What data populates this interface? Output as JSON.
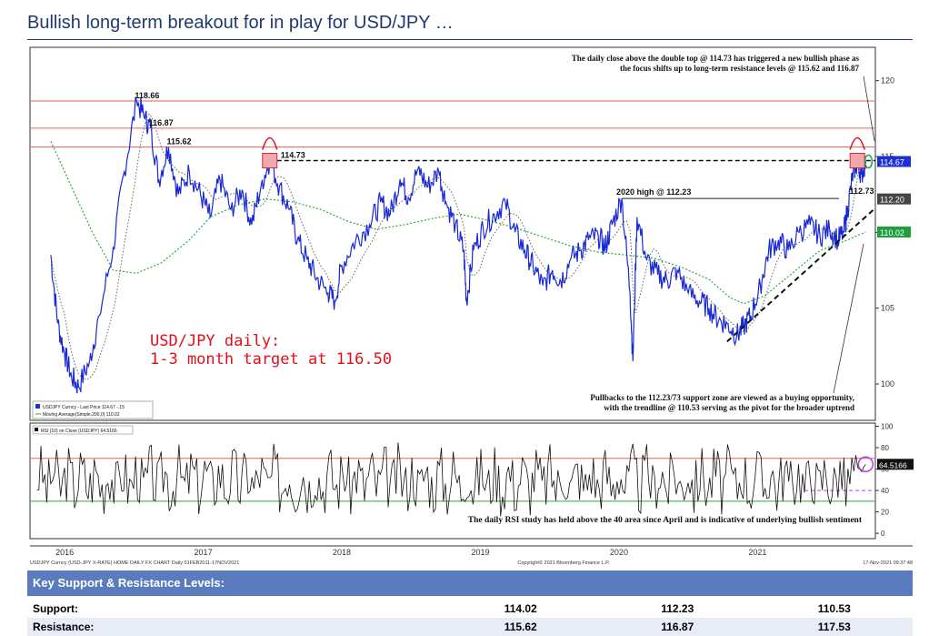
{
  "page_title": "Bullish long-term breakout for in play for USD/JPY …",
  "chart_data": {
    "type": "line",
    "main": {
      "y_ticks": [
        100,
        105,
        110,
        115,
        120
      ],
      "ylim": [
        97.6,
        122.2
      ],
      "x_labels": [
        "2016",
        "2017",
        "2018",
        "2019",
        "2020",
        "2021"
      ],
      "series": [
        {
          "name": "USDJPY Curncy - Last Price",
          "last": "114.67",
          "change": "-.15"
        },
        {
          "name": "Moving Average(Simple,200,0)",
          "last": "110.02"
        }
      ],
      "price_path": [
        [
          2016.0,
          108.5
        ],
        [
          2016.05,
          104.0
        ],
        [
          2016.1,
          102.0
        ],
        [
          2016.15,
          100.5
        ],
        [
          2016.2,
          99.8
        ],
        [
          2016.28,
          101.5
        ],
        [
          2016.35,
          104.5
        ],
        [
          2016.45,
          109.0
        ],
        [
          2016.53,
          114.0
        ],
        [
          2016.62,
          118.66
        ],
        [
          2016.68,
          117.5
        ],
        [
          2016.72,
          116.87
        ],
        [
          2016.78,
          113.5
        ],
        [
          2016.85,
          115.62
        ],
        [
          2016.92,
          112.5
        ],
        [
          2017.0,
          114.0
        ],
        [
          2017.08,
          112.5
        ],
        [
          2017.15,
          111.0
        ],
        [
          2017.22,
          113.5
        ],
        [
          2017.3,
          111.5
        ],
        [
          2017.38,
          112.8
        ],
        [
          2017.45,
          110.5
        ],
        [
          2017.52,
          113.2
        ],
        [
          2017.58,
          114.73
        ],
        [
          2017.65,
          113.0
        ],
        [
          2017.72,
          111.5
        ],
        [
          2017.78,
          109.5
        ],
        [
          2017.85,
          108.2
        ],
        [
          2017.92,
          107.0
        ],
        [
          2018.0,
          106.0
        ],
        [
          2018.05,
          105.5
        ],
        [
          2018.1,
          107.8
        ],
        [
          2018.2,
          109.5
        ],
        [
          2018.3,
          110.5
        ],
        [
          2018.38,
          112.0
        ],
        [
          2018.45,
          111.2
        ],
        [
          2018.52,
          113.5
        ],
        [
          2018.58,
          112.3
        ],
        [
          2018.65,
          114.2
        ],
        [
          2018.72,
          113.0
        ],
        [
          2018.8,
          114.0
        ],
        [
          2018.85,
          112.0
        ],
        [
          2018.92,
          110.5
        ],
        [
          2018.98,
          108.7
        ],
        [
          2019.0,
          105.5
        ],
        [
          2019.05,
          108.8
        ],
        [
          2019.12,
          110.3
        ],
        [
          2019.2,
          111.2
        ],
        [
          2019.28,
          112.0
        ],
        [
          2019.35,
          110.0
        ],
        [
          2019.42,
          108.8
        ],
        [
          2019.48,
          107.8
        ],
        [
          2019.55,
          106.5
        ],
        [
          2019.62,
          107.5
        ],
        [
          2019.68,
          106.8
        ],
        [
          2019.75,
          108.2
        ],
        [
          2019.82,
          108.8
        ],
        [
          2019.88,
          109.5
        ],
        [
          2019.95,
          109.8
        ],
        [
          2020.0,
          109.0
        ],
        [
          2020.05,
          110.5
        ],
        [
          2020.12,
          112.23
        ],
        [
          2020.18,
          106.0
        ],
        [
          2020.2,
          101.5
        ],
        [
          2020.23,
          111.0
        ],
        [
          2020.3,
          108.2
        ],
        [
          2020.38,
          107.2
        ],
        [
          2020.45,
          106.8
        ],
        [
          2020.52,
          107.5
        ],
        [
          2020.6,
          106.0
        ],
        [
          2020.68,
          105.5
        ],
        [
          2020.75,
          105.0
        ],
        [
          2020.82,
          104.2
        ],
        [
          2020.88,
          104.0
        ],
        [
          2020.95,
          103.2
        ],
        [
          2021.0,
          103.8
        ],
        [
          2021.05,
          104.5
        ],
        [
          2021.12,
          106.5
        ],
        [
          2021.18,
          108.8
        ],
        [
          2021.25,
          109.5
        ],
        [
          2021.32,
          108.8
        ],
        [
          2021.4,
          110.0
        ],
        [
          2021.48,
          110.5
        ],
        [
          2021.55,
          109.8
        ],
        [
          2021.62,
          110.2
        ],
        [
          2021.68,
          109.5
        ],
        [
          2021.72,
          110.0
        ],
        [
          2021.75,
          111.5
        ],
        [
          2021.79,
          114.0
        ],
        [
          2021.82,
          114.6
        ],
        [
          2021.85,
          113.8
        ],
        [
          2021.88,
          114.67
        ]
      ],
      "sma_path": [
        [
          2016.0,
          116.0
        ],
        [
          2016.15,
          113.0
        ],
        [
          2016.3,
          110.0
        ],
        [
          2016.45,
          107.5
        ],
        [
          2016.62,
          107.3
        ],
        [
          2016.8,
          108.0
        ],
        [
          2017.0,
          109.5
        ],
        [
          2017.15,
          111.0
        ],
        [
          2017.35,
          111.8
        ],
        [
          2017.55,
          112.2
        ],
        [
          2017.75,
          112.0
        ],
        [
          2017.95,
          111.5
        ],
        [
          2018.15,
          110.7
        ],
        [
          2018.35,
          110.2
        ],
        [
          2018.55,
          110.5
        ],
        [
          2018.75,
          110.9
        ],
        [
          2018.95,
          111.2
        ],
        [
          2019.15,
          110.8
        ],
        [
          2019.35,
          110.3
        ],
        [
          2019.55,
          109.7
        ],
        [
          2019.75,
          109.1
        ],
        [
          2019.95,
          108.7
        ],
        [
          2020.15,
          108.5
        ],
        [
          2020.35,
          108.3
        ],
        [
          2020.55,
          107.7
        ],
        [
          2020.75,
          106.9
        ],
        [
          2020.9,
          105.7
        ],
        [
          2021.0,
          105.3
        ],
        [
          2021.15,
          105.8
        ],
        [
          2021.35,
          107.3
        ],
        [
          2021.55,
          108.8
        ],
        [
          2021.75,
          109.5
        ],
        [
          2021.88,
          110.02
        ]
      ],
      "trendline": {
        "from": [
          2020.88,
          102.8
        ],
        "to": [
          2021.95,
          111.6
        ]
      },
      "levels": [
        {
          "label": "118.66",
          "value": 118.66
        },
        {
          "label": "116.87",
          "value": 116.87
        },
        {
          "label": "115.62",
          "value": 115.62
        },
        {
          "label": "114.73",
          "value": 114.73
        },
        {
          "label": "2020 high @ 112.23",
          "value": 112.23
        },
        {
          "label": "112.73",
          "value": 112.73
        }
      ],
      "price_tags": [
        {
          "text": "114.67",
          "value": 114.67,
          "color": "#1f2fd6"
        },
        {
          "text": "112.20",
          "value": 112.2,
          "color": "#444444"
        },
        {
          "text": "110.02",
          "value": 110.02,
          "color": "#1e9e3c"
        }
      ],
      "annotation_top": "The daily close above the double top @ 114.73 has triggered a new bullish phase as\nthe focus shifts up to long-term resistance levels @ 115.62 and 116.87",
      "annotation_bottom": "Pullbacks to the 112.23/73 support zone are viewed as a buying opportunity,\nwith the trendline @ 110.53 serving as the pivot for the broader uptrend",
      "target_text": "USD/JPY daily:\n1-3 month target at 116.50"
    },
    "rsi": {
      "name": "RSI (10) on Close (USDJPY) 64.5166",
      "last": "64.5166",
      "y_ticks": [
        0,
        20,
        40,
        60,
        80,
        100
      ],
      "ylim": [
        -5,
        103
      ],
      "overbought": 70,
      "oversold": 30,
      "annotation": "The daily RSI study has held above the 40 area since April and is indicative of underlying bullish sentiment"
    }
  },
  "footer": {
    "left": "USDJPY Curncy (USD-JPY X-RATE) HOME DAILY FX CHART Daily 01FEB2011-17NOV2021",
    "center": "Copyright© 2021 Bloomberg Finance L.P.",
    "right": "17-Nov-2021 09:37:48"
  },
  "key_table": {
    "header": "Key Support & Resistance Levels:",
    "rows": [
      {
        "label": "Support:",
        "values": [
          "114.02",
          "112.23",
          "110.53"
        ]
      },
      {
        "label": "Resistance:",
        "values": [
          "115.62",
          "116.87",
          "117.53"
        ]
      }
    ]
  }
}
